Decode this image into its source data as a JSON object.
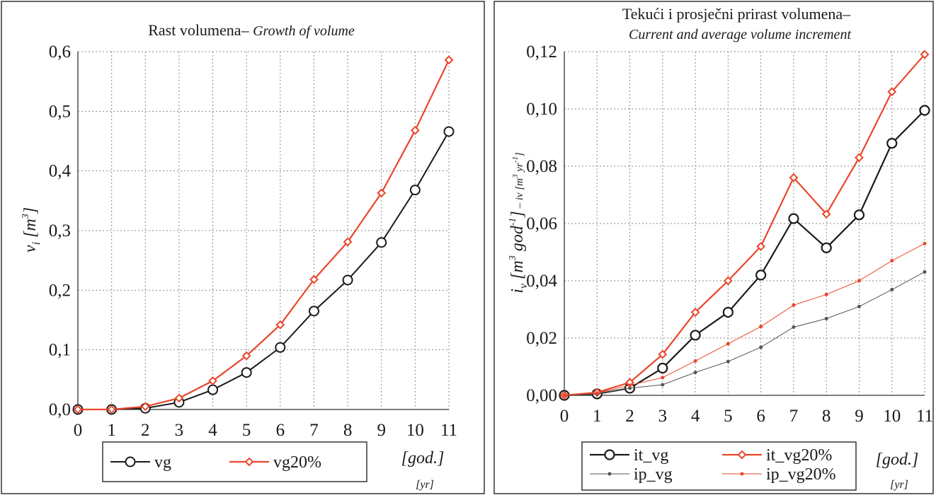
{
  "chart_data": [
    {
      "type": "line",
      "title": "Rast volumena–",
      "title_english": "Growth of volume",
      "ylabel": "v",
      "ylabel_sub": "i",
      "ylabel_unit": "[m",
      "ylabel_unit_sup": "3",
      "ylabel_unit_close": "]",
      "xlabel": "[god.]",
      "xlabel_english": "[yr]",
      "x": [
        0,
        1,
        2,
        3,
        4,
        5,
        6,
        7,
        8,
        9,
        10,
        11
      ],
      "xlim": [
        0,
        11
      ],
      "ylim": [
        0,
        0.6
      ],
      "yticks": [
        "0,0",
        "0,1",
        "0,2",
        "0,3",
        "0,4",
        "0,5",
        "0,6"
      ],
      "ytick_values": [
        0,
        0.1,
        0.2,
        0.3,
        0.4,
        0.5,
        0.6
      ],
      "grid": true,
      "legend_position": "bottom",
      "series": [
        {
          "name": "vg",
          "color": "#1a1a1a",
          "marker": "circle",
          "values": [
            0.0,
            0.0,
            0.002,
            0.012,
            0.033,
            0.062,
            0.104,
            0.165,
            0.217,
            0.28,
            0.368,
            0.466
          ]
        },
        {
          "name": "vg20%",
          "color": "#e8472b",
          "marker": "diamond",
          "values": [
            0.0,
            0.0,
            0.005,
            0.019,
            0.048,
            0.09,
            0.142,
            0.218,
            0.281,
            0.363,
            0.468,
            0.586
          ]
        }
      ]
    },
    {
      "type": "line",
      "title": "Tekući i prosječni prirast volumena–",
      "subtitle": "Current and average volume increment",
      "ylabel": "i",
      "ylabel_sub": "v",
      "ylabel_unit": "[m",
      "ylabel_unit_sup": "3",
      "ylabel_unit_mid": " god",
      "ylabel_unit_sup2": "-1",
      "ylabel_unit_close": "]",
      "ylabel_english": " – iv [m",
      "ylabel_english_sup": "3",
      "ylabel_english_mid": " yr",
      "ylabel_english_sup2": "-1",
      "ylabel_english_close": "]",
      "xlabel": "[god.]",
      "xlabel_english": "[yr]",
      "x": [
        0,
        1,
        2,
        3,
        4,
        5,
        6,
        7,
        8,
        9,
        10,
        11
      ],
      "xlim": [
        0,
        11
      ],
      "ylim": [
        0,
        0.12
      ],
      "yticks": [
        "0,00",
        "0,02",
        "0,04",
        "0,06",
        "0,08",
        "0,10",
        "0,12"
      ],
      "ytick_values": [
        0,
        0.02,
        0.04,
        0.06,
        0.08,
        0.1,
        0.12
      ],
      "grid": true,
      "legend_position": "bottom",
      "series": [
        {
          "name": "it_vg",
          "color": "#1a1a1a",
          "marker": "circle-large",
          "values": [
            0.0,
            0.0005,
            0.0025,
            0.0095,
            0.021,
            0.029,
            0.042,
            0.0617,
            0.0515,
            0.063,
            0.088,
            0.0995
          ]
        },
        {
          "name": "it_vg20%",
          "color": "#e8472b",
          "marker": "diamond",
          "values": [
            0.0,
            0.001,
            0.0045,
            0.0143,
            0.029,
            0.04,
            0.052,
            0.076,
            0.0633,
            0.083,
            0.106,
            0.119
          ]
        },
        {
          "name": "ip_vg",
          "color": "#555555",
          "marker": "dot",
          "values": [
            0.0,
            0.0005,
            0.0025,
            0.0037,
            0.008,
            0.0118,
            0.0168,
            0.0238,
            0.0268,
            0.031,
            0.0369,
            0.0431
          ]
        },
        {
          "name": "ip_vg20%",
          "color": "#e8472b",
          "marker": "dot",
          "values": [
            0.0,
            0.0008,
            0.0035,
            0.0062,
            0.012,
            0.018,
            0.024,
            0.0315,
            0.0352,
            0.04,
            0.047,
            0.053
          ]
        }
      ]
    }
  ]
}
